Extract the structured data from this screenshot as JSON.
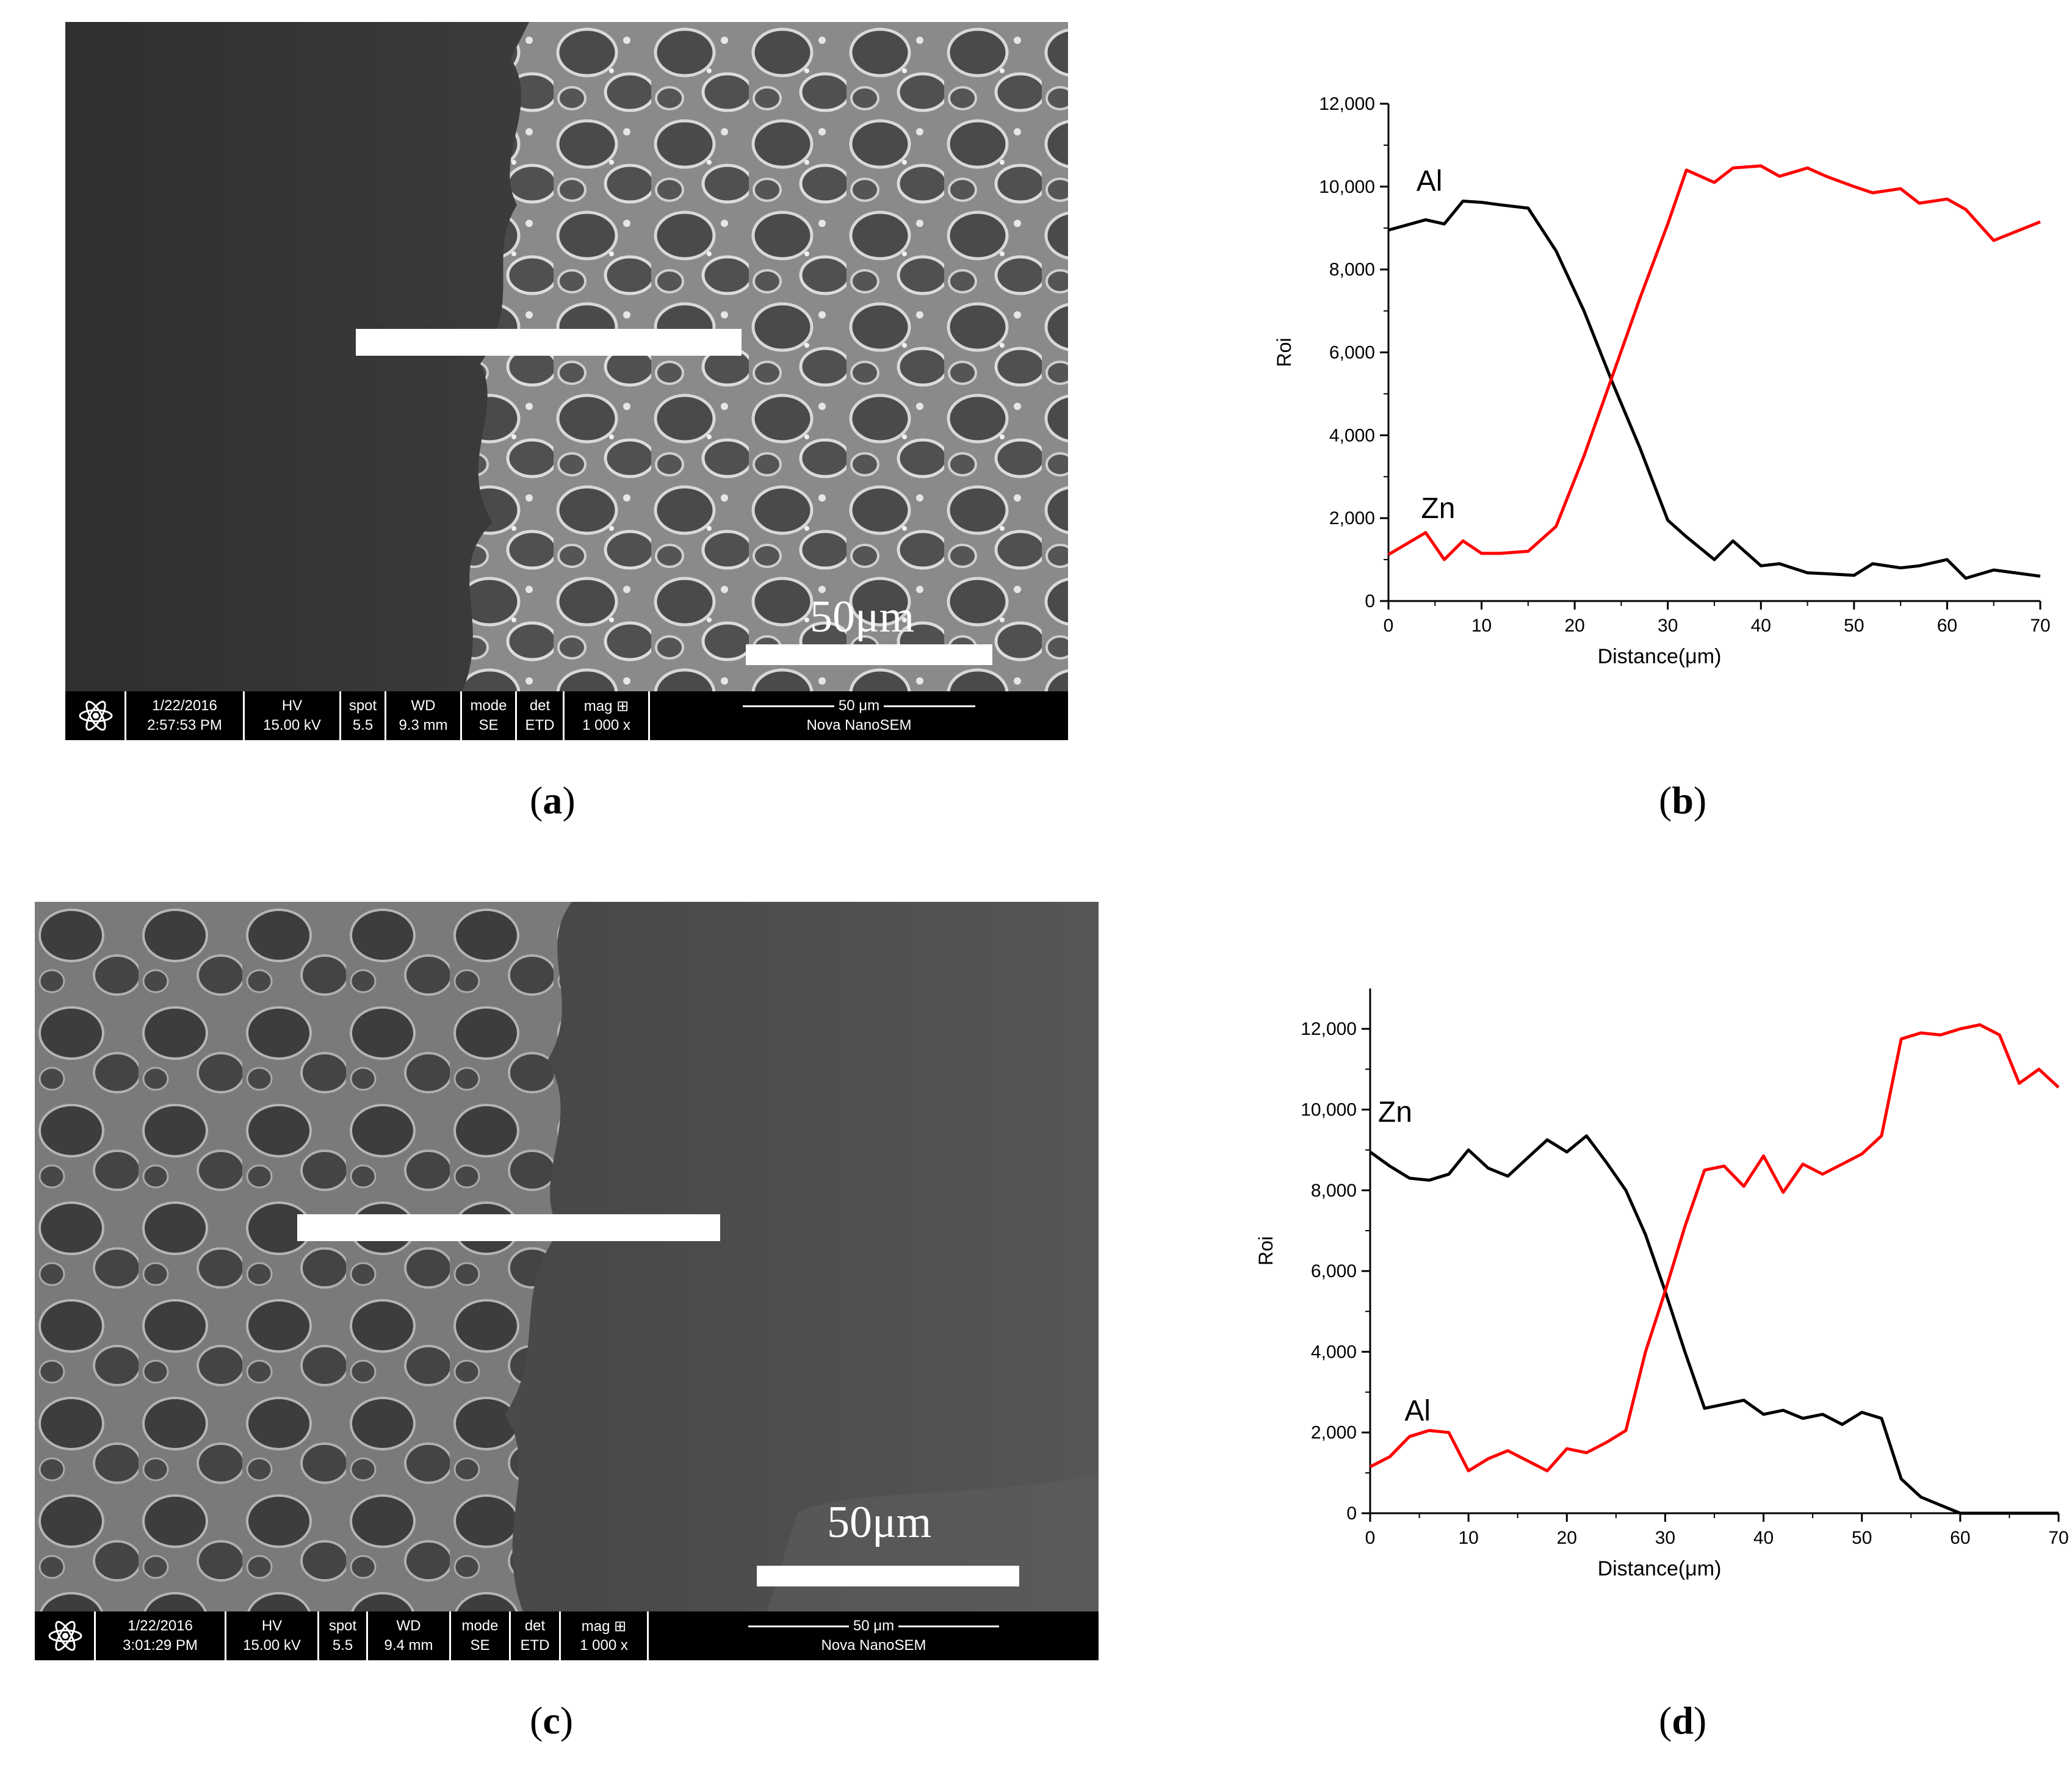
{
  "panels": [
    {
      "id": "a",
      "caption_letter": "a",
      "scale_text": "50μm",
      "databar": {
        "date": "1/22/2016",
        "time": "2:57:53 PM",
        "hv_label": "HV",
        "hv_value": "15.00 kV",
        "spot_label": "spot",
        "spot_value": "5.5",
        "wd_label": "WD",
        "wd_value": "9.3 mm",
        "mode_label": "mode",
        "mode_value": "SE",
        "det_label": "det",
        "det_value": "ETD",
        "mag_label": "mag ⊞",
        "mag_value": "1 000 x",
        "scale_label": "50 μm",
        "instrument": "Nova NanoSEM"
      }
    },
    {
      "id": "c",
      "caption_letter": "c",
      "scale_text": "50μm",
      "databar": {
        "date": "1/22/2016",
        "time": "3:01:29 PM",
        "hv_label": "HV",
        "hv_value": "15.00 kV",
        "spot_label": "spot",
        "spot_value": "5.5",
        "wd_label": "WD",
        "wd_value": "9.4 mm",
        "mode_label": "mode",
        "mode_value": "SE",
        "det_label": "det",
        "det_value": "ETD",
        "mag_label": "mag ⊞",
        "mag_value": "1 000 x",
        "scale_label": "50 μm",
        "instrument": "Nova NanoSEM"
      }
    }
  ],
  "captions": {
    "b": "b",
    "d": "d"
  },
  "chart_data": [
    {
      "panel": "b",
      "type": "line",
      "xlabel": "Distance(μm)",
      "ylabel": "Roi",
      "xlim": [
        0,
        70
      ],
      "ylim": [
        0,
        12000
      ],
      "xticks": [
        "0",
        "10",
        "20",
        "30",
        "40",
        "50",
        "60",
        "70"
      ],
      "yticks": [
        "0",
        "2,000",
        "4,000",
        "6,000",
        "8,000",
        "10,000",
        "12,000"
      ],
      "grid": false,
      "series": [
        {
          "name": "Al",
          "color": "#000000",
          "x": [
            0,
            4,
            6,
            8,
            10,
            12,
            15,
            18,
            21,
            24,
            27,
            30,
            32,
            35,
            37,
            40,
            42,
            45,
            47,
            50,
            52,
            55,
            57,
            60,
            62,
            65,
            70
          ],
          "y": [
            8950,
            9200,
            9100,
            9650,
            9620,
            9560,
            9480,
            8450,
            7000,
            5300,
            3700,
            1950,
            1550,
            1000,
            1450,
            850,
            900,
            680,
            660,
            620,
            900,
            800,
            850,
            1000,
            550,
            750,
            600
          ]
        },
        {
          "name": "Zn",
          "color": "#ff0000",
          "x": [
            0,
            4,
            6,
            8,
            10,
            12,
            15,
            18,
            21,
            24,
            27,
            30,
            32,
            35,
            37,
            40,
            42,
            45,
            47,
            50,
            52,
            55,
            57,
            60,
            62,
            65,
            70
          ],
          "y": [
            1120,
            1650,
            1000,
            1450,
            1150,
            1150,
            1200,
            1800,
            3500,
            5400,
            7300,
            9100,
            10400,
            10100,
            10450,
            10500,
            10250,
            10450,
            10250,
            10000,
            9850,
            9950,
            9600,
            9700,
            9450,
            8700,
            9150
          ]
        }
      ],
      "annotations": [
        "Al",
        "Zn"
      ]
    },
    {
      "panel": "d",
      "type": "line",
      "xlabel": "Distance(μm)",
      "ylabel": "Roi",
      "xlim": [
        0,
        70
      ],
      "ylim": [
        0,
        13000
      ],
      "xticks": [
        "0",
        "10",
        "20",
        "30",
        "40",
        "50",
        "60",
        "70"
      ],
      "yticks": [
        "0",
        "2,000",
        "4,000",
        "6,000",
        "8,000",
        "10,000",
        "12,000"
      ],
      "grid": false,
      "series": [
        {
          "name": "Zn",
          "color": "#000000",
          "x": [
            0,
            2,
            4,
            6,
            8,
            10,
            12,
            14,
            16,
            18,
            20,
            22,
            24,
            26,
            28,
            30,
            32,
            34,
            36,
            38,
            40,
            42,
            44,
            46,
            48,
            50,
            52,
            54,
            56,
            58,
            60,
            70
          ],
          "y": [
            8950,
            8600,
            8300,
            8250,
            8400,
            9000,
            8550,
            8350,
            8800,
            9250,
            8950,
            9350,
            8700,
            8000,
            6900,
            5500,
            4000,
            2600,
            2700,
            2800,
            2450,
            2550,
            2350,
            2450,
            2200,
            2500,
            2350,
            850,
            400,
            200,
            0,
            0
          ]
        },
        {
          "name": "Al",
          "color": "#ff0000",
          "x": [
            0,
            2,
            4,
            6,
            8,
            10,
            12,
            14,
            16,
            18,
            20,
            22,
            24,
            26,
            28,
            30,
            32,
            34,
            36,
            38,
            40,
            42,
            44,
            46,
            48,
            50,
            52,
            54,
            56,
            58,
            60,
            62,
            64,
            66,
            68,
            70
          ],
          "y": [
            1150,
            1400,
            1900,
            2050,
            2000,
            1050,
            1350,
            1550,
            1300,
            1050,
            1600,
            1500,
            1750,
            2050,
            4000,
            5500,
            7100,
            8500,
            8600,
            8100,
            8850,
            7950,
            8650,
            8400,
            8650,
            8900,
            9350,
            11750,
            11900,
            11850,
            12000,
            12100,
            11850,
            10650,
            11000,
            10550
          ]
        }
      ],
      "annotations": [
        "Zn",
        "Al"
      ]
    }
  ]
}
